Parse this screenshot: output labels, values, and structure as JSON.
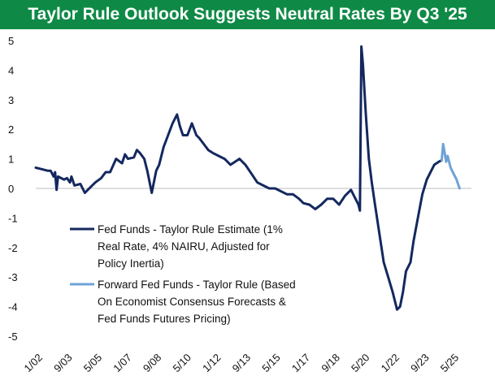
{
  "chart_data": {
    "type": "line",
    "title": "Taylor Rule Outlook Suggests Neutral Rates By Q3 '25",
    "xlabel": "",
    "ylabel": "",
    "ylim": [
      -5,
      5
    ],
    "xlim": [
      "2002-01",
      "2026-06"
    ],
    "grid": false,
    "legend_position": "lower-left inside",
    "y_ticks": [
      "5",
      "4",
      "3",
      "2",
      "1",
      "0",
      "-1",
      "-2",
      "-3",
      "-4",
      "-5"
    ],
    "x_ticks": [
      {
        "label": "1/02",
        "date": "2002-01"
      },
      {
        "label": "9/03",
        "date": "2003-09"
      },
      {
        "label": "5/05",
        "date": "2005-05"
      },
      {
        "label": "1/07",
        "date": "2007-01"
      },
      {
        "label": "9/08",
        "date": "2008-09"
      },
      {
        "label": "5/10",
        "date": "2010-05"
      },
      {
        "label": "1/12",
        "date": "2012-01"
      },
      {
        "label": "9/13",
        "date": "2013-09"
      },
      {
        "label": "5/15",
        "date": "2015-05"
      },
      {
        "label": "1/17",
        "date": "2017-01"
      },
      {
        "label": "9/18",
        "date": "2018-09"
      },
      {
        "label": "5/20",
        "date": "2020-05"
      },
      {
        "label": "1/22",
        "date": "2022-01"
      },
      {
        "label": "9/23",
        "date": "2023-09"
      },
      {
        "label": "5/25",
        "date": "2025-05"
      }
    ],
    "series": [
      {
        "name": "Fed Funds - Taylor Rule Estimate (1% Real Rate, 4% NAIRU, Adjusted for Policy Inertia)",
        "legend_lines": [
          "Fed Funds - Taylor Rule Estimate (1%",
          "Real Rate, 4% NAIRU, Adjusted for",
          "Policy Inertia)"
        ],
        "color": "#14285f",
        "points": [
          [
            "2002-01",
            0.7
          ],
          [
            "2002-05",
            0.65
          ],
          [
            "2002-09",
            0.6
          ],
          [
            "2002-11",
            0.6
          ],
          [
            "2003-01",
            0.4
          ],
          [
            "2003-02",
            0.55
          ],
          [
            "2003-03",
            -0.05
          ],
          [
            "2003-04",
            0.4
          ],
          [
            "2003-08",
            0.3
          ],
          [
            "2003-10",
            0.35
          ],
          [
            "2003-12",
            0.2
          ],
          [
            "2004-01",
            0.4
          ],
          [
            "2004-03",
            0.1
          ],
          [
            "2004-07",
            0.15
          ],
          [
            "2004-10",
            -0.15
          ],
          [
            "2004-12",
            -0.05
          ],
          [
            "2005-05",
            0.2
          ],
          [
            "2005-09",
            0.35
          ],
          [
            "2005-12",
            0.55
          ],
          [
            "2006-03",
            0.55
          ],
          [
            "2006-07",
            1.0
          ],
          [
            "2006-11",
            0.85
          ],
          [
            "2007-01",
            1.15
          ],
          [
            "2007-03",
            1.0
          ],
          [
            "2007-07",
            1.05
          ],
          [
            "2007-09",
            1.3
          ],
          [
            "2007-11",
            1.2
          ],
          [
            "2008-02",
            1.0
          ],
          [
            "2008-04",
            0.6
          ],
          [
            "2008-07",
            -0.15
          ],
          [
            "2008-10",
            0.6
          ],
          [
            "2008-12",
            0.8
          ],
          [
            "2009-03",
            1.4
          ],
          [
            "2009-06",
            1.8
          ],
          [
            "2009-09",
            2.2
          ],
          [
            "2009-12",
            2.5
          ],
          [
            "2010-02",
            2.1
          ],
          [
            "2010-04",
            1.8
          ],
          [
            "2010-07",
            1.8
          ],
          [
            "2010-10",
            2.2
          ],
          [
            "2011-01",
            1.8
          ],
          [
            "2011-03",
            1.7
          ],
          [
            "2011-06",
            1.5
          ],
          [
            "2011-09",
            1.3
          ],
          [
            "2011-12",
            1.2
          ],
          [
            "2012-04",
            1.1
          ],
          [
            "2012-08",
            1.0
          ],
          [
            "2012-12",
            0.8
          ],
          [
            "2013-03",
            0.9
          ],
          [
            "2013-06",
            1.0
          ],
          [
            "2013-10",
            0.8
          ],
          [
            "2014-02",
            0.5
          ],
          [
            "2014-06",
            0.2
          ],
          [
            "2014-10",
            0.1
          ],
          [
            "2015-02",
            0.0
          ],
          [
            "2015-06",
            0.0
          ],
          [
            "2015-10",
            -0.1
          ],
          [
            "2016-02",
            -0.2
          ],
          [
            "2016-06",
            -0.2
          ],
          [
            "2016-10",
            -0.35
          ],
          [
            "2017-01",
            -0.5
          ],
          [
            "2017-05",
            -0.55
          ],
          [
            "2017-09",
            -0.7
          ],
          [
            "2018-01",
            -0.55
          ],
          [
            "2018-05",
            -0.35
          ],
          [
            "2018-09",
            -0.35
          ],
          [
            "2019-01",
            -0.55
          ],
          [
            "2019-05",
            -0.25
          ],
          [
            "2019-09",
            -0.05
          ],
          [
            "2019-12",
            -0.35
          ],
          [
            "2020-02",
            -0.55
          ],
          [
            "2020-03",
            -0.75
          ],
          [
            "2020-04",
            4.8
          ],
          [
            "2020-05",
            4.2
          ],
          [
            "2020-07",
            2.5
          ],
          [
            "2020-09",
            1.0
          ],
          [
            "2020-11",
            0.2
          ],
          [
            "2021-01",
            -0.5
          ],
          [
            "2021-04",
            -1.5
          ],
          [
            "2021-07",
            -2.5
          ],
          [
            "2021-10",
            -3.0
          ],
          [
            "2022-01",
            -3.5
          ],
          [
            "2022-04",
            -4.1
          ],
          [
            "2022-06",
            -4.0
          ],
          [
            "2022-08",
            -3.5
          ],
          [
            "2022-10",
            -2.8
          ],
          [
            "2023-01",
            -2.5
          ],
          [
            "2023-03",
            -1.8
          ],
          [
            "2023-06",
            -1.0
          ],
          [
            "2023-09",
            -0.2
          ],
          [
            "2023-12",
            0.3
          ],
          [
            "2024-03",
            0.6
          ],
          [
            "2024-05",
            0.8
          ],
          [
            "2024-08",
            0.9
          ],
          [
            "2024-10",
            0.95
          ]
        ]
      },
      {
        "name": "Forward Fed Funds - Taylor Rule (Based On Economist Consensus Forecasts & Fed Funds Futures Pricing)",
        "legend_lines": [
          "Forward Fed Funds - Taylor Rule (Based",
          "On Economist Consensus Forecasts &",
          "Fed Funds Futures Pricing)"
        ],
        "color": "#6fa3d6",
        "points": [
          [
            "2024-10",
            0.95
          ],
          [
            "2024-11",
            1.5
          ],
          [
            "2024-12",
            1.2
          ],
          [
            "2025-01",
            0.9
          ],
          [
            "2025-02",
            1.1
          ],
          [
            "2025-04",
            0.7
          ],
          [
            "2025-06",
            0.5
          ],
          [
            "2025-08",
            0.3
          ],
          [
            "2025-10",
            0.0
          ]
        ]
      }
    ]
  }
}
